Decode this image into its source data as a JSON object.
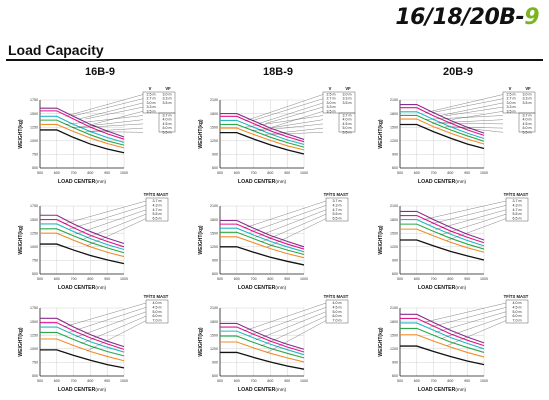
{
  "brand": {
    "prefix": "16/18/20B-",
    "accent": "9",
    "accent_color": "#7ab51d"
  },
  "section_title": "Load Capacity",
  "models": [
    "16B-9",
    "18B-9",
    "20B-9"
  ],
  "y_axis_label": "WEIGHT(kg)",
  "x_axis_label": "LOAD CENTER(mm)",
  "x_ticks": [
    "500",
    "600",
    "700",
    "800",
    "900",
    "1000"
  ],
  "y_ticks": {
    "16B-9": [
      "500",
      "750",
      "1000",
      "1250",
      "1500",
      "1750"
    ],
    "18B-9": [
      "600",
      "900",
      "1200",
      "1500",
      "1800",
      "2100"
    ],
    "20B-9": [
      "600",
      "900",
      "1200",
      "1500",
      "1800",
      "2100"
    ]
  },
  "series_colors": [
    "#8a2b8f",
    "#e0168a",
    "#27b6c4",
    "#2aa84a",
    "#f28c28",
    "#111111"
  ],
  "legends": {
    "v_vf": {
      "headers": [
        "V",
        "VF"
      ],
      "rows": [
        [
          "2.5 m",
          "3.0 m"
        ],
        [
          "2.7 m",
          "3.3 m"
        ],
        [
          "3.0 m",
          "3.5 m"
        ],
        [
          "3.3 m",
          ""
        ],
        [
          "3.5 m",
          ""
        ],
        [
          "",
          "3.7 m"
        ],
        [
          "",
          "4.0 m"
        ],
        [
          "",
          "4.5 m"
        ],
        [
          "",
          "5.0 m"
        ],
        [
          "",
          "5.5 m"
        ]
      ]
    },
    "tf_ts_row2": {
      "header": "TF/TS MAST",
      "rows": [
        "3.7 m",
        "4.3 m",
        "4.7 m",
        "5.5 m",
        "6.5 m"
      ]
    },
    "tf_ts_row3": {
      "header": "TF/TS MAST",
      "rows": [
        "4.0 m",
        "4.5 m",
        "5.0 m",
        "6.0 m",
        "7.0 m"
      ]
    }
  },
  "chart_data": [
    {
      "type": "line",
      "model": "16B-9",
      "mast": "V/VF",
      "xlabel": "LOAD CENTER(mm)",
      "ylabel": "WEIGHT(kg)",
      "x": [
        500,
        600,
        700,
        800,
        900,
        1000
      ],
      "ylim": [
        500,
        1750
      ],
      "series": [
        {
          "values": [
            1600,
            1600,
            1450,
            1300,
            1180,
            1070
          ]
        },
        {
          "values": [
            1550,
            1550,
            1400,
            1250,
            1130,
            1030
          ]
        },
        {
          "values": [
            1450,
            1450,
            1300,
            1170,
            1060,
            970
          ]
        },
        {
          "values": [
            1380,
            1380,
            1240,
            1110,
            1000,
            920
          ]
        },
        {
          "values": [
            1300,
            1300,
            1170,
            1050,
            950,
            870
          ]
        },
        {
          "values": [
            1200,
            1200,
            1060,
            940,
            850,
            780
          ]
        }
      ]
    },
    {
      "type": "line",
      "model": "18B-9",
      "mast": "V/VF",
      "xlabel": "LOAD CENTER(mm)",
      "ylabel": "WEIGHT(kg)",
      "x": [
        500,
        600,
        700,
        800,
        900,
        1000
      ],
      "ylim": [
        600,
        2100
      ],
      "series": [
        {
          "values": [
            1800,
            1800,
            1640,
            1480,
            1350,
            1230
          ]
        },
        {
          "values": [
            1740,
            1740,
            1580,
            1420,
            1290,
            1180
          ]
        },
        {
          "values": [
            1650,
            1650,
            1500,
            1350,
            1220,
            1120
          ]
        },
        {
          "values": [
            1560,
            1560,
            1420,
            1280,
            1160,
            1060
          ]
        },
        {
          "values": [
            1480,
            1480,
            1340,
            1210,
            1090,
            1000
          ]
        },
        {
          "values": [
            1380,
            1380,
            1240,
            1110,
            1000,
            910
          ]
        }
      ]
    },
    {
      "type": "line",
      "model": "20B-9",
      "mast": "V/VF",
      "xlabel": "LOAD CENTER(mm)",
      "ylabel": "WEIGHT(kg)",
      "x": [
        500,
        600,
        700,
        800,
        900,
        1000
      ],
      "ylim": [
        600,
        2100
      ],
      "series": [
        {
          "values": [
            2000,
            2000,
            1820,
            1650,
            1500,
            1370
          ]
        },
        {
          "values": [
            1930,
            1930,
            1750,
            1590,
            1440,
            1320
          ]
        },
        {
          "values": [
            1840,
            1840,
            1670,
            1510,
            1370,
            1250
          ]
        },
        {
          "values": [
            1760,
            1760,
            1590,
            1440,
            1310,
            1190
          ]
        },
        {
          "values": [
            1680,
            1680,
            1510,
            1370,
            1240,
            1130
          ]
        },
        {
          "values": [
            1560,
            1560,
            1400,
            1260,
            1130,
            1030
          ]
        }
      ]
    },
    {
      "type": "line",
      "model": "16B-9",
      "mast": "TF/TS",
      "xlabel": "LOAD CENTER(mm)",
      "ylabel": "WEIGHT(kg)",
      "x": [
        500,
        600,
        700,
        800,
        900,
        1000
      ],
      "ylim": [
        500,
        1750
      ],
      "series": [
        {
          "values": [
            1580,
            1580,
            1420,
            1280,
            1160,
            1060
          ]
        },
        {
          "values": [
            1500,
            1500,
            1350,
            1210,
            1100,
            1000
          ]
        },
        {
          "values": [
            1420,
            1420,
            1280,
            1150,
            1040,
            950
          ]
        },
        {
          "values": [
            1330,
            1330,
            1200,
            1080,
            980,
            890
          ]
        },
        {
          "values": [
            1250,
            1250,
            1120,
            1000,
            900,
            820
          ]
        },
        {
          "values": [
            1050,
            1050,
            940,
            840,
            760,
            690
          ]
        }
      ]
    },
    {
      "type": "line",
      "model": "18B-9",
      "mast": "TF/TS",
      "xlabel": "LOAD CENTER(mm)",
      "ylabel": "WEIGHT(kg)",
      "x": [
        500,
        600,
        700,
        800,
        900,
        1000
      ],
      "ylim": [
        600,
        2100
      ],
      "series": [
        {
          "values": [
            1780,
            1780,
            1610,
            1450,
            1320,
            1200
          ]
        },
        {
          "values": [
            1700,
            1700,
            1540,
            1390,
            1260,
            1150
          ]
        },
        {
          "values": [
            1610,
            1610,
            1460,
            1320,
            1200,
            1090
          ]
        },
        {
          "values": [
            1520,
            1520,
            1380,
            1240,
            1130,
            1030
          ]
        },
        {
          "values": [
            1420,
            1420,
            1290,
            1160,
            1050,
            960
          ]
        },
        {
          "values": [
            1200,
            1200,
            1080,
            970,
            880,
            800
          ]
        }
      ]
    },
    {
      "type": "line",
      "model": "20B-9",
      "mast": "TF/TS",
      "xlabel": "LOAD CENTER(mm)",
      "ylabel": "WEIGHT(kg)",
      "x": [
        500,
        600,
        700,
        800,
        900,
        1000
      ],
      "ylim": [
        600,
        2100
      ],
      "series": [
        {
          "values": [
            1980,
            1980,
            1800,
            1630,
            1480,
            1350
          ]
        },
        {
          "values": [
            1890,
            1890,
            1720,
            1550,
            1410,
            1290
          ]
        },
        {
          "values": [
            1800,
            1800,
            1630,
            1480,
            1340,
            1220
          ]
        },
        {
          "values": [
            1700,
            1700,
            1540,
            1390,
            1260,
            1150
          ]
        },
        {
          "values": [
            1590,
            1590,
            1440,
            1300,
            1180,
            1080
          ]
        },
        {
          "values": [
            1350,
            1350,
            1220,
            1100,
            1000,
            910
          ]
        }
      ]
    },
    {
      "type": "line",
      "model": "16B-9",
      "mast": "TF/TS",
      "xlabel": "LOAD CENTER(mm)",
      "ylabel": "WEIGHT(kg)",
      "x": [
        500,
        600,
        700,
        800,
        900,
        1000
      ],
      "ylim": [
        500,
        1750
      ],
      "series": [
        {
          "values": [
            1560,
            1560,
            1400,
            1260,
            1140,
            1040
          ]
        },
        {
          "values": [
            1480,
            1480,
            1330,
            1200,
            1090,
            990
          ]
        },
        {
          "values": [
            1400,
            1400,
            1260,
            1130,
            1030,
            940
          ]
        },
        {
          "values": [
            1300,
            1300,
            1170,
            1050,
            950,
            870
          ]
        },
        {
          "values": [
            1180,
            1180,
            1060,
            950,
            860,
            780
          ]
        },
        {
          "values": [
            980,
            980,
            880,
            790,
            710,
            650
          ]
        }
      ]
    },
    {
      "type": "line",
      "model": "18B-9",
      "mast": "TF/TS",
      "xlabel": "LOAD CENTER(mm)",
      "ylabel": "WEIGHT(kg)",
      "x": [
        500,
        600,
        700,
        800,
        900,
        1000
      ],
      "ylim": [
        600,
        2100
      ],
      "series": [
        {
          "values": [
            1760,
            1760,
            1590,
            1430,
            1300,
            1190
          ]
        },
        {
          "values": [
            1680,
            1680,
            1520,
            1370,
            1240,
            1130
          ]
        },
        {
          "values": [
            1590,
            1590,
            1440,
            1300,
            1180,
            1070
          ]
        },
        {
          "values": [
            1480,
            1480,
            1340,
            1210,
            1100,
            1000
          ]
        },
        {
          "values": [
            1350,
            1350,
            1220,
            1100,
            1000,
            910
          ]
        },
        {
          "values": [
            1120,
            1120,
            1010,
            910,
            820,
            750
          ]
        }
      ]
    },
    {
      "type": "line",
      "model": "20B-9",
      "mast": "TF/TS",
      "xlabel": "LOAD CENTER(mm)",
      "ylabel": "WEIGHT(kg)",
      "x": [
        500,
        600,
        700,
        800,
        900,
        1000
      ],
      "ylim": [
        600,
        2100
      ],
      "series": [
        {
          "values": [
            1960,
            1960,
            1780,
            1610,
            1460,
            1330
          ]
        },
        {
          "values": [
            1870,
            1870,
            1700,
            1530,
            1390,
            1270
          ]
        },
        {
          "values": [
            1770,
            1770,
            1610,
            1450,
            1320,
            1200
          ]
        },
        {
          "values": [
            1650,
            1650,
            1500,
            1350,
            1230,
            1120
          ]
        },
        {
          "values": [
            1510,
            1510,
            1370,
            1240,
            1120,
            1020
          ]
        },
        {
          "values": [
            1260,
            1260,
            1140,
            1030,
            930,
            850
          ]
        }
      ]
    }
  ]
}
